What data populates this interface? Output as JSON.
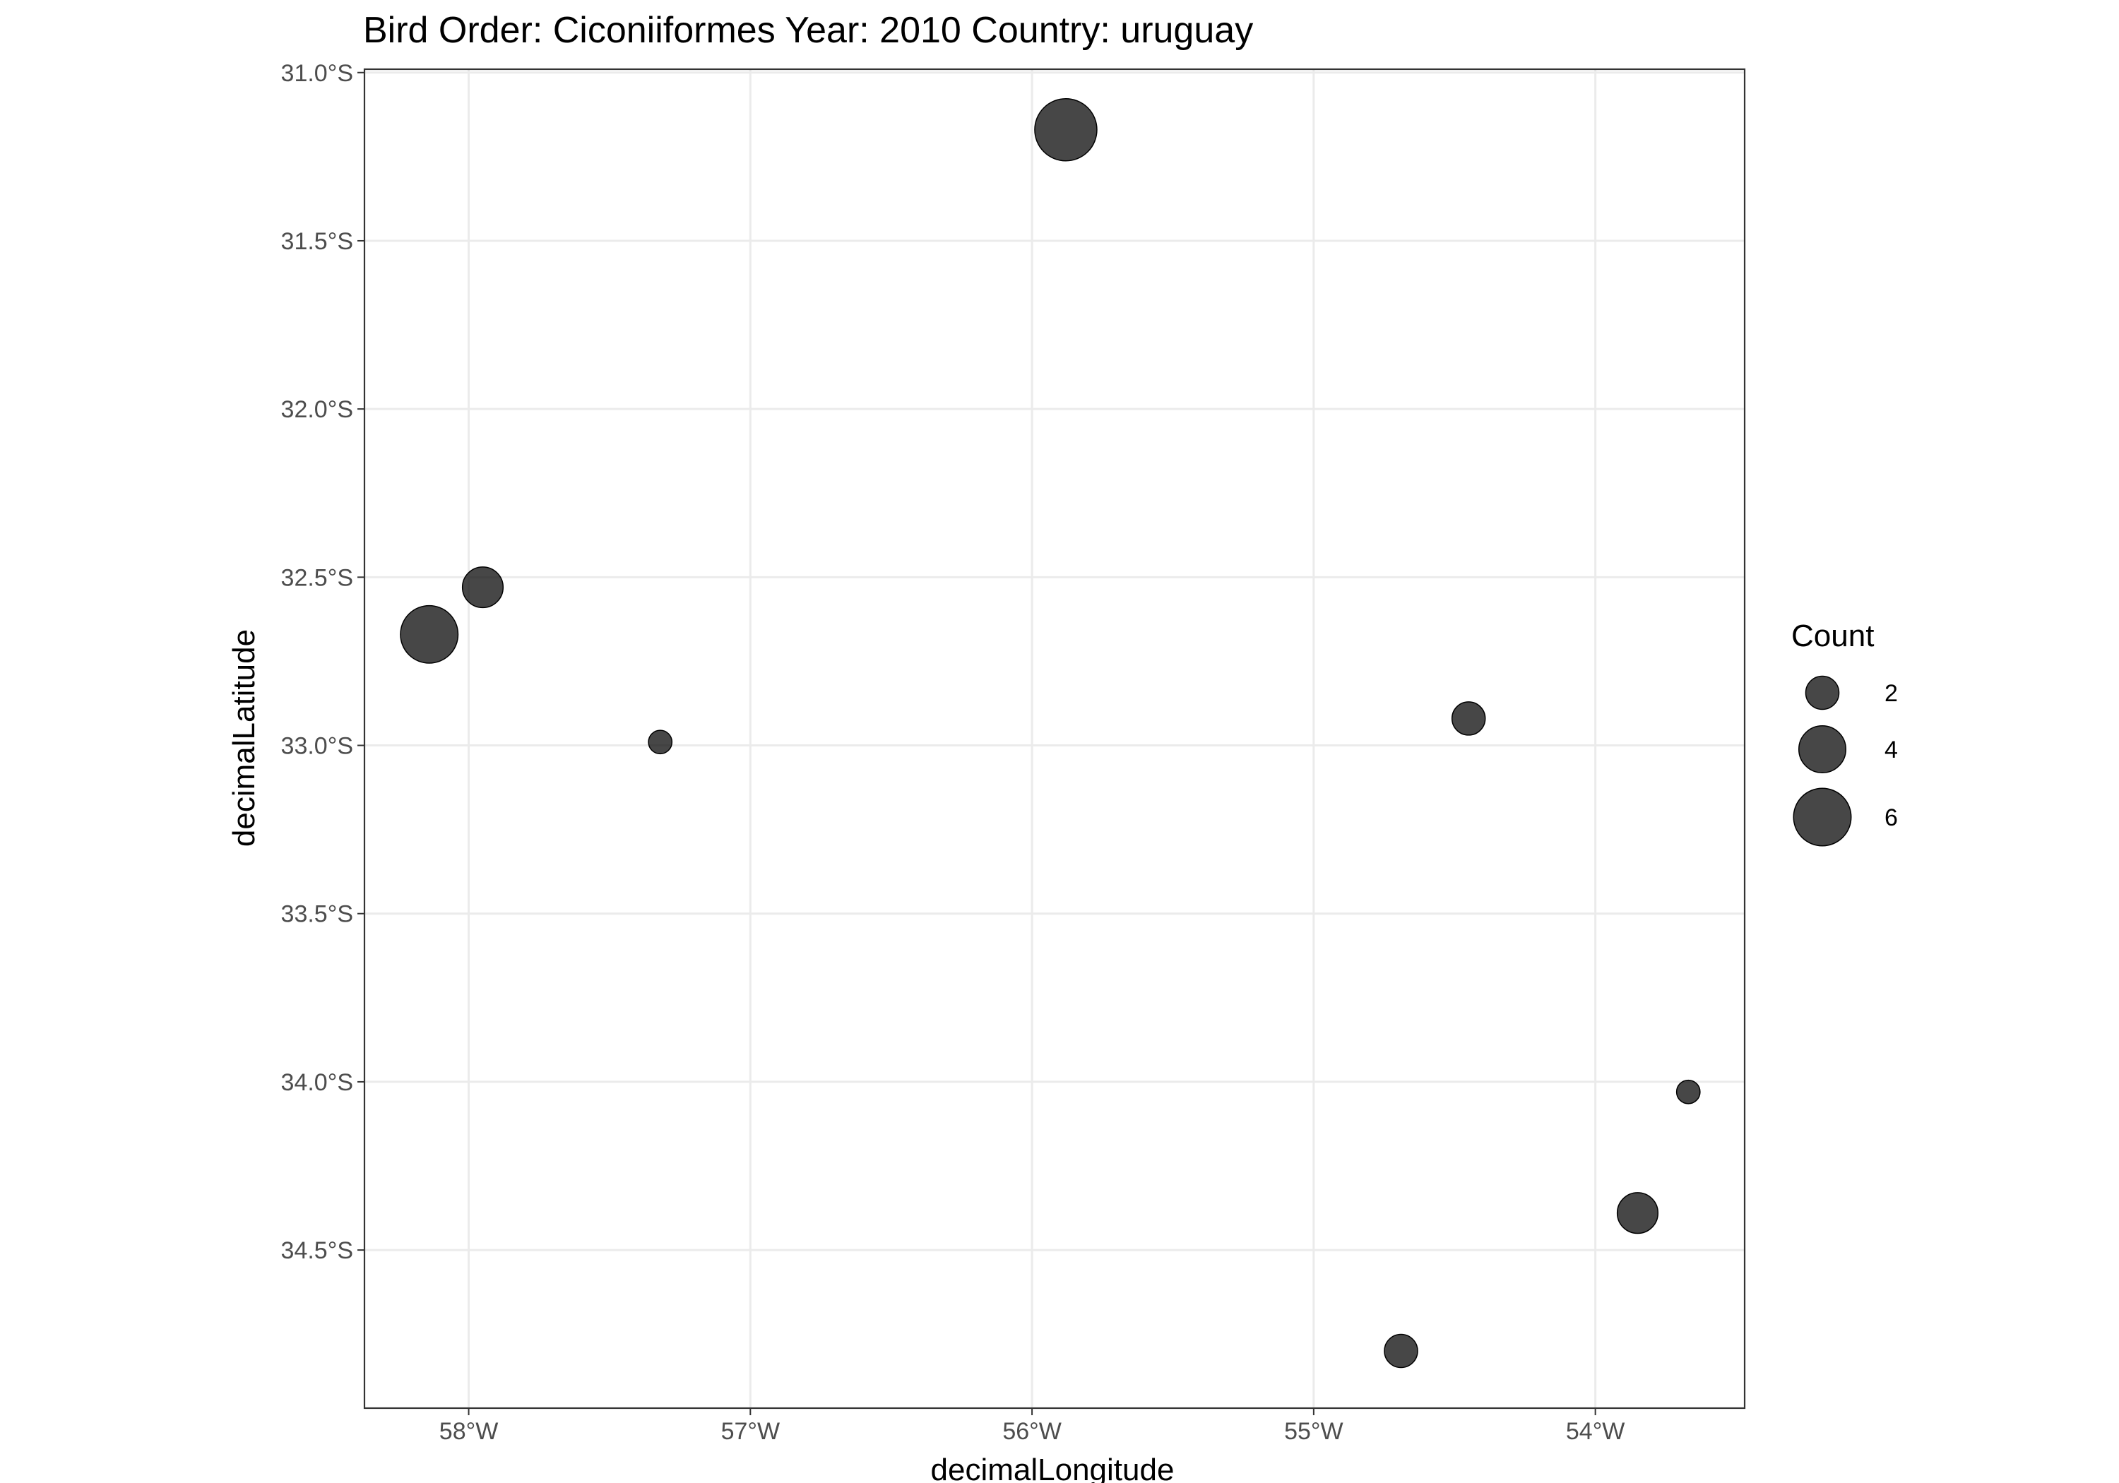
{
  "chart_data": {
    "type": "scatter",
    "title": "Bird Order: Ciconiiformes Year: 2010 Country: uruguay",
    "xlabel": "decimalLongitude",
    "ylabel": "decimalLatitude",
    "xlim": [
      -58.37,
      -53.47
    ],
    "ylim": [
      -34.97,
      -30.99
    ],
    "x_ticks": [
      {
        "value": -58,
        "label": "58°W"
      },
      {
        "value": -57,
        "label": "57°W"
      },
      {
        "value": -56,
        "label": "56°W"
      },
      {
        "value": -55,
        "label": "55°W"
      },
      {
        "value": -54,
        "label": "54°W"
      }
    ],
    "y_ticks": [
      {
        "value": -31.0,
        "label": "31.0°S"
      },
      {
        "value": -31.5,
        "label": "31.5°S"
      },
      {
        "value": -32.0,
        "label": "32.0°S"
      },
      {
        "value": -32.5,
        "label": "32.5°S"
      },
      {
        "value": -33.0,
        "label": "33.0°S"
      },
      {
        "value": -33.5,
        "label": "33.5°S"
      },
      {
        "value": -34.0,
        "label": "34.0°S"
      },
      {
        "value": -34.5,
        "label": "34.5°S"
      }
    ],
    "grid": true,
    "point_color": "#000000",
    "point_opacity": 0.72,
    "points": [
      {
        "lon": -55.88,
        "lat": -31.17,
        "count": 7
      },
      {
        "lon": -57.95,
        "lat": -32.53,
        "count": 3
      },
      {
        "lon": -58.14,
        "lat": -32.67,
        "count": 6
      },
      {
        "lon": -57.32,
        "lat": -32.99,
        "count": 1
      },
      {
        "lon": -54.45,
        "lat": -32.92,
        "count": 2
      },
      {
        "lon": -53.67,
        "lat": -34.03,
        "count": 1
      },
      {
        "lon": -53.85,
        "lat": -34.39,
        "count": 3
      },
      {
        "lon": -54.69,
        "lat": -34.8,
        "count": 2
      }
    ],
    "legend": {
      "title": "Count",
      "placement": "right",
      "entries": [
        {
          "value": 2,
          "label": "2"
        },
        {
          "value": 4,
          "label": "4"
        },
        {
          "value": 6,
          "label": "6"
        }
      ]
    }
  }
}
